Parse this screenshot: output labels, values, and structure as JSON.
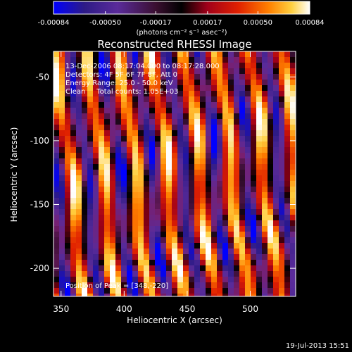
{
  "chart_data": {
    "type": "heatmap",
    "title": "Reconstructed RHESSI Image",
    "xlabel": "Heliocentric X (arcsec)",
    "ylabel": "Heliocentric Y (arcsec)",
    "xlim": [
      344,
      536
    ],
    "ylim": [
      -222,
      -30
    ],
    "x_ticks": [
      "350",
      "400",
      "450",
      "500"
    ],
    "x_tick_values": [
      350,
      400,
      450,
      500
    ],
    "y_ticks": [
      "-50",
      "-100",
      "-150",
      "-200"
    ],
    "y_tick_values": [
      -50,
      -100,
      -150,
      -200
    ],
    "colorbar": {
      "ticks": [
        "-0.00084",
        "-0.00050",
        "-0.00017",
        "0.00017",
        "0.00050",
        "0.00084"
      ],
      "tick_values": [
        -0.00084,
        -0.0005,
        -0.00017,
        0.00017,
        0.0005,
        0.00084
      ],
      "range": [
        -0.00084,
        0.00084
      ],
      "units": "(photons cm⁻² s⁻¹ asec⁻²)",
      "colors": [
        "#0000ff",
        "#2d1b86",
        "#5a2b9a",
        "#7a1f6e",
        "#000000",
        "#a0001a",
        "#e02000",
        "#ff8000",
        "#ffd040",
        "#ffffff"
      ]
    },
    "annotations": [
      "13-Dec-2006 08:17:04.000 to 08:17:28.000",
      "Detectors: 4F 5F 6F 7F 8F, Att 0",
      "Energy Range: 25.0 - 50.0 keV",
      "Clean     Total counts: 1.05E+03",
      "Position of Peak = [348,-220]"
    ],
    "peak": [
      348,
      -220
    ],
    "stripe_orientation": "near-vertical, slightly tilted",
    "grid": false
  },
  "footer": {
    "timestamp": "19-Jul-2013 15:51"
  }
}
